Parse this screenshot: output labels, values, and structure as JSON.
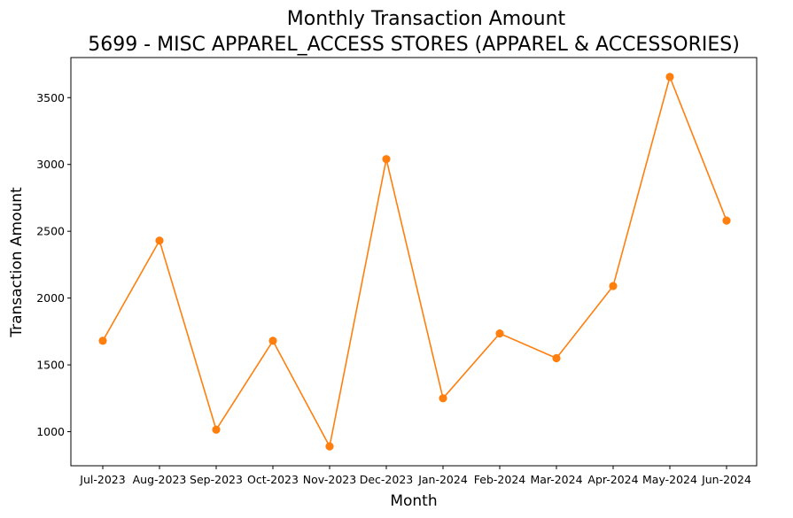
{
  "chart_data": {
    "type": "line",
    "title": "Monthly Transaction Amount",
    "subtitle": "5699 - MISC APPAREL_ACCESS STORES (APPAREL & ACCESSORIES)",
    "xlabel": "Month",
    "ylabel": "Transaction Amount",
    "categories": [
      "Jul-2023",
      "Aug-2023",
      "Sep-2023",
      "Oct-2023",
      "Nov-2023",
      "Dec-2023",
      "Jan-2024",
      "Feb-2024",
      "Mar-2024",
      "Apr-2024",
      "May-2024",
      "Jun-2024"
    ],
    "series": [
      {
        "values": [
          1680,
          2430,
          1015,
          1680,
          890,
          3040,
          1250,
          1735,
          1550,
          2090,
          3655,
          2580
        ],
        "color": "#ff7f0e",
        "marker": "circle"
      }
    ],
    "yticks": [
      1000,
      1500,
      2000,
      2500,
      3000,
      3500
    ],
    "ylim": [
      745,
      3800
    ],
    "grid": false,
    "legend": "none"
  }
}
